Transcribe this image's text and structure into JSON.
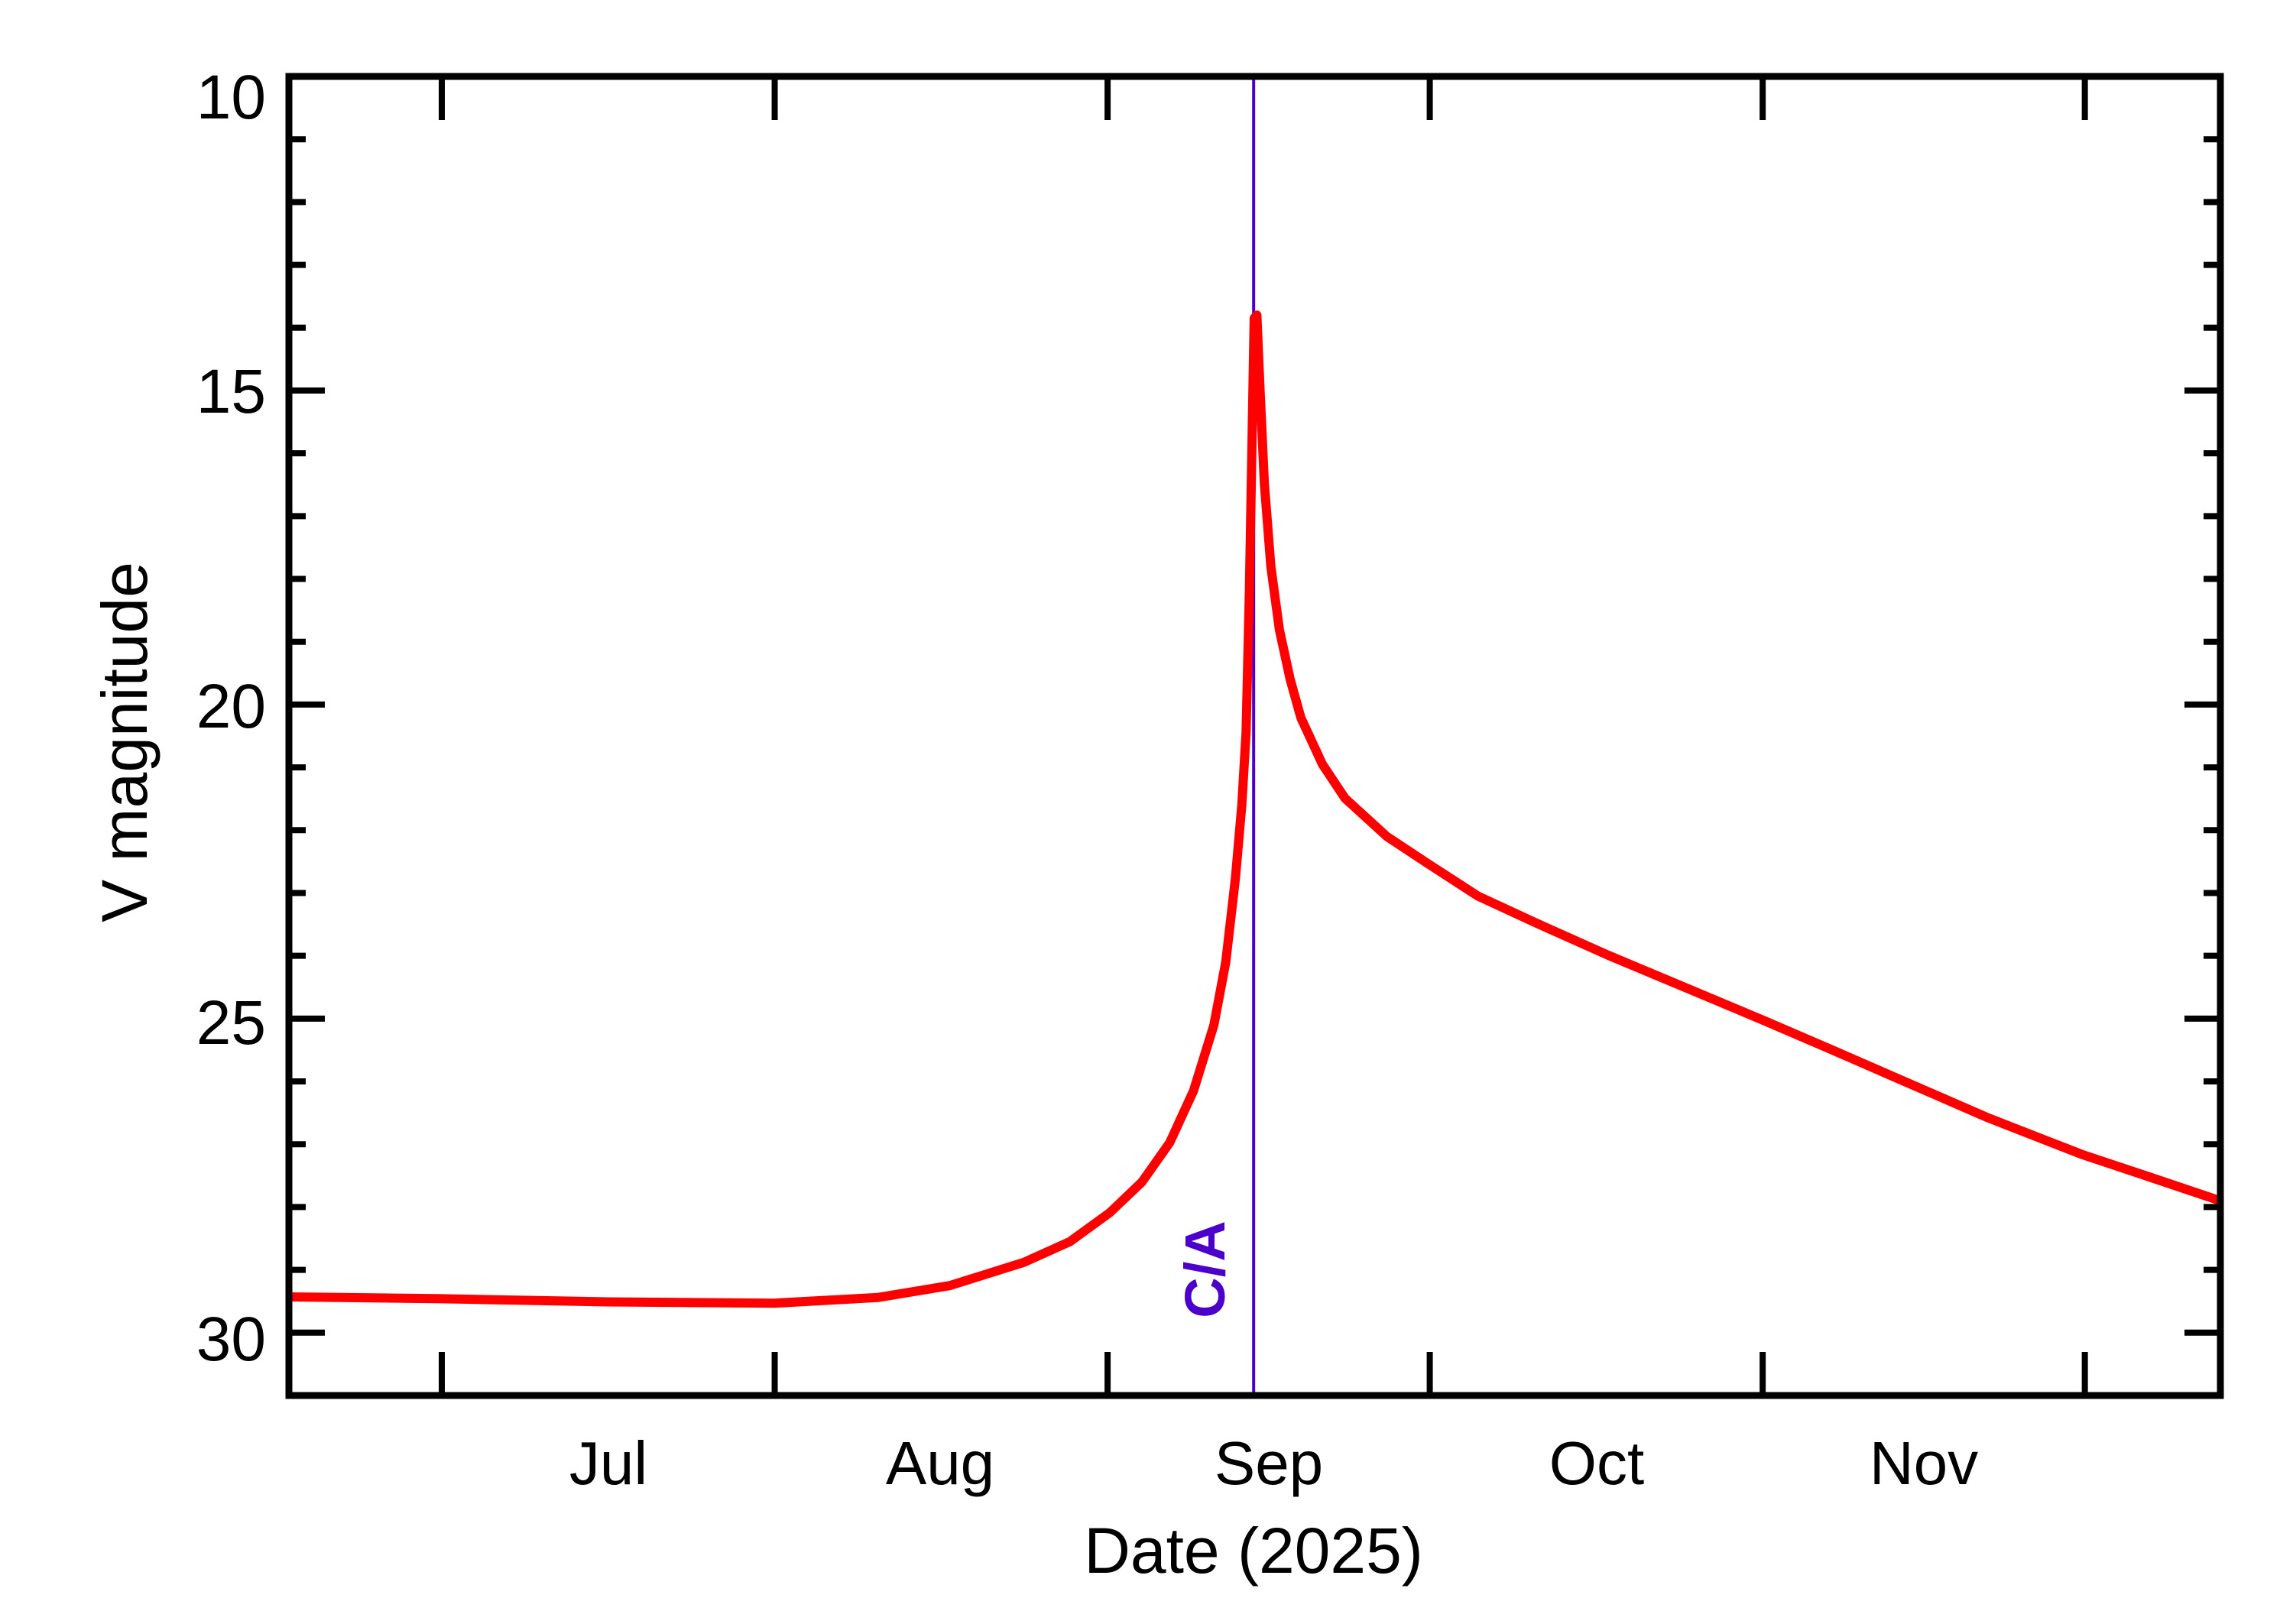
{
  "chart_data": {
    "type": "line",
    "title": "",
    "xlabel": "Date (2025)",
    "ylabel": "V magnitude",
    "x_unit": "day_of_year_2025",
    "xlim": [
      167.7,
      347.6
    ],
    "ylim": [
      31,
      10
    ],
    "y_inverted": true,
    "grid": false,
    "legend": null,
    "y_ticks_major": [
      10,
      15,
      20,
      25,
      30
    ],
    "y_ticks_minor_step": 1,
    "x_ticks": [
      {
        "label": "Jul",
        "month_start_day": 182,
        "label_day": 197.5
      },
      {
        "label": "Aug",
        "month_start_day": 213,
        "label_day": 228.5
      },
      {
        "label": "Sep",
        "month_start_day": 244,
        "label_day": 259
      },
      {
        "label": "Oct",
        "month_start_day": 274,
        "label_day": 289.5
      },
      {
        "label": "Nov",
        "month_start_day": 305,
        "label_day": 320
      },
      {
        "label": "",
        "month_start_day": 335,
        "label_day": null
      }
    ],
    "annotations": [
      {
        "type": "vline",
        "label": "C/A",
        "x_day": 257.6,
        "date_approx": "2025-09-14",
        "color": "#4B00CC"
      }
    ],
    "series": [
      {
        "name": "V magnitude",
        "color": "#FF0000",
        "x": [
          167.7,
          182.1,
          197.4,
          213.0,
          222.6,
          229.3,
          236.2,
          240.5,
          244.2,
          247.2,
          249.8,
          252.0,
          253.9,
          255.0,
          255.9,
          256.5,
          256.9,
          257.2,
          257.45,
          257.65,
          257.9,
          258.2,
          258.6,
          259.2,
          260.0,
          261.0,
          262.0,
          264.0,
          266.1,
          270.0,
          273.9,
          278.5,
          283.8,
          290.6,
          298.0,
          305.1,
          311.5,
          317.8,
          326.0,
          334.7,
          341.0,
          347.6
        ],
        "y": [
          29.43,
          29.46,
          29.51,
          29.53,
          29.44,
          29.25,
          28.88,
          28.55,
          28.09,
          27.6,
          26.97,
          26.15,
          25.1,
          24.1,
          22.77,
          21.6,
          20.44,
          18.2,
          15.78,
          13.85,
          13.8,
          15.0,
          16.48,
          17.8,
          18.81,
          19.6,
          20.21,
          20.95,
          21.49,
          22.1,
          22.54,
          23.05,
          23.47,
          23.99,
          24.52,
          25.03,
          25.5,
          25.97,
          26.58,
          27.16,
          27.52,
          27.9
        ]
      }
    ]
  },
  "labels": {
    "xlabel": "Date (2025)",
    "ylabel": "V magnitude",
    "ca": "C/A",
    "y_ticks": [
      "10",
      "15",
      "20",
      "25",
      "30"
    ],
    "months": [
      "Jul",
      "Aug",
      "Sep",
      "Oct",
      "Nov"
    ]
  },
  "colors": {
    "curve": "#FF0000",
    "ca_line": "#4B00CC",
    "axes": "#000000",
    "background": "#FFFFFF"
  }
}
